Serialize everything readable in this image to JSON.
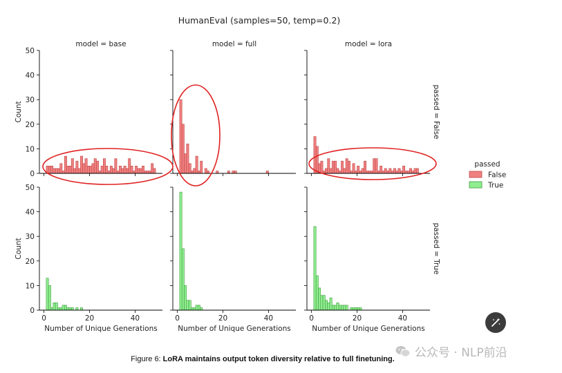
{
  "chart_data": {
    "type": "bar",
    "title": "HumanEval (samples=50, temp=0.2)",
    "xlabel": "Number of Unique Generations",
    "ylabel": "Count",
    "xlim": [
      -2,
      52
    ],
    "ylim": [
      0,
      50
    ],
    "xticks": [
      0,
      20,
      40
    ],
    "yticks": [
      0,
      10,
      20,
      30,
      40,
      50
    ],
    "bin_width": 1,
    "columns": [
      "model = base",
      "model = full",
      "model = lora"
    ],
    "rows": [
      "passed = False",
      "passed = True"
    ],
    "legend": {
      "title": "passed",
      "position": "right",
      "entries": [
        {
          "label": "False",
          "color": "#f08080",
          "edge": "#c04848"
        },
        {
          "label": "True",
          "color": "#90ee90",
          "edge": "#3c9a3c"
        }
      ]
    },
    "panels": [
      {
        "model": "base",
        "passed": "False",
        "color": "#f08080",
        "x": [
          1,
          2,
          3,
          4,
          5,
          6,
          7,
          8,
          9,
          10,
          11,
          12,
          13,
          14,
          15,
          16,
          17,
          18,
          19,
          20,
          21,
          22,
          23,
          24,
          25,
          26,
          27,
          28,
          29,
          30,
          31,
          32,
          33,
          34,
          35,
          36,
          37,
          38,
          39,
          40,
          41,
          42,
          43,
          44,
          45,
          46,
          47,
          48
        ],
        "values": [
          3,
          3,
          3,
          2,
          2,
          2,
          4,
          1,
          7,
          3,
          3,
          6,
          2,
          5,
          2,
          7,
          4,
          6,
          3,
          3,
          4,
          6,
          5,
          1,
          3,
          6,
          3,
          1,
          3,
          2,
          6,
          1,
          3,
          2,
          3,
          2,
          6,
          3,
          1,
          3,
          2,
          2,
          3,
          1,
          1,
          1,
          4,
          2
        ]
      },
      {
        "model": "full",
        "passed": "False",
        "color": "#f08080",
        "x": [
          1,
          2,
          3,
          4,
          5,
          6,
          7,
          8,
          9,
          10,
          12,
          13,
          17,
          22,
          24,
          25,
          39
        ],
        "values": [
          30,
          20,
          8,
          12,
          4,
          1,
          2,
          7,
          1,
          5,
          2,
          1,
          1,
          1,
          1,
          1,
          1
        ]
      },
      {
        "model": "lora",
        "passed": "False",
        "color": "#f08080",
        "x": [
          1,
          2,
          3,
          4,
          5,
          6,
          7,
          8,
          9,
          10,
          11,
          12,
          13,
          14,
          15,
          16,
          17,
          18,
          19,
          20,
          21,
          22,
          23,
          24,
          25,
          26,
          27,
          28,
          29,
          30,
          31,
          32,
          33,
          34,
          35,
          36,
          37,
          38,
          39,
          40,
          41,
          42,
          43,
          44,
          45,
          46
        ],
        "values": [
          15,
          11,
          4,
          5,
          1,
          2,
          6,
          2,
          5,
          5,
          2,
          1,
          5,
          2,
          6,
          5,
          1,
          4,
          1,
          3,
          1,
          2,
          5,
          1,
          1,
          1,
          6,
          6,
          1,
          3,
          1,
          2,
          1,
          2,
          1,
          2,
          1,
          2,
          1,
          3,
          1,
          1,
          2,
          1,
          2,
          2
        ]
      },
      {
        "model": "base",
        "passed": "True",
        "color": "#90ee90",
        "x": [
          1,
          2,
          3,
          4,
          5,
          6,
          7,
          8,
          9,
          10,
          11,
          12,
          13,
          14,
          15,
          16
        ],
        "values": [
          13,
          10,
          1,
          3,
          3,
          1,
          1,
          2,
          2,
          1,
          1,
          1,
          0,
          1,
          0,
          1
        ]
      },
      {
        "model": "full",
        "passed": "True",
        "color": "#90ee90",
        "x": [
          1,
          2,
          3,
          4,
          5,
          6,
          7,
          8,
          9,
          10
        ],
        "values": [
          48,
          25,
          10,
          4,
          4,
          1,
          1,
          2,
          2,
          1
        ]
      },
      {
        "model": "lora",
        "passed": "True",
        "color": "#90ee90",
        "x": [
          1,
          2,
          3,
          4,
          5,
          6,
          7,
          8,
          9,
          10,
          11,
          12,
          13,
          14,
          15,
          16,
          17,
          18,
          19,
          20,
          21
        ],
        "values": [
          34,
          14,
          9,
          6,
          6,
          4,
          3,
          5,
          2,
          2,
          3,
          2,
          2,
          2,
          2,
          0,
          1,
          1,
          1,
          1,
          1
        ]
      }
    ]
  },
  "caption": {
    "prefix": "Figure 6: ",
    "text": "LoRA maintains output token diversity relative to full finetuning."
  },
  "watermark": {
    "text": "公众号 · NLP前沿"
  },
  "colors": {
    "annotation_ellipse": "#e02020",
    "axis": "#000000"
  },
  "icons": {
    "magic_button": "magic-wand-icon",
    "watermark_logo": "wechat-logo-icon"
  }
}
